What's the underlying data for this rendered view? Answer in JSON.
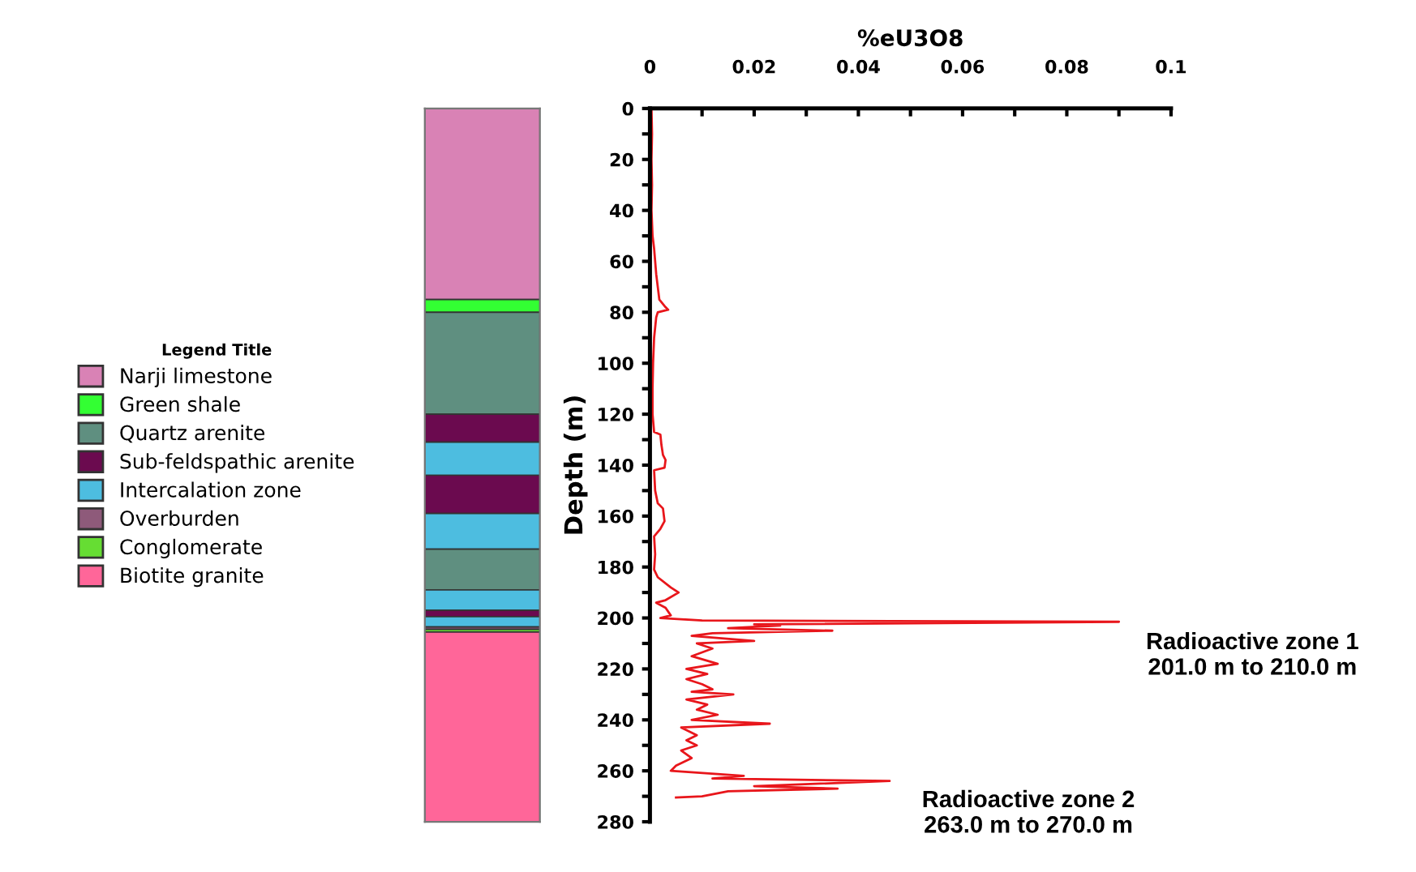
{
  "chart_data": [
    {
      "type": "bar",
      "stacked": true,
      "categories": [
        null
      ],
      "ylim": [
        280,
        0
      ],
      "tick_labels": false,
      "legend": "left",
      "legend_title": "Legend Title",
      "grid": false,
      "series": [
        {
          "name": "Narji limestone",
          "color": "#d982b5",
          "values": [
            75
          ]
        },
        {
          "name": "Green shale",
          "color": "#33ff33",
          "values": [
            5
          ]
        },
        {
          "name": "Quartz arenite",
          "color": "#5f8f80",
          "values": [
            40
          ]
        },
        {
          "name": "Sub-feldspathic arenite",
          "color": "#6b0a4f",
          "values": [
            11
          ]
        },
        {
          "name": "Intercalation zone",
          "color": "#4dbde0",
          "values": [
            13
          ]
        },
        {
          "color": "#6b0a4f",
          "values": [
            15
          ]
        },
        {
          "color": "#4dbde0",
          "values": [
            14
          ]
        },
        {
          "color": "#5f8f80",
          "values": [
            16
          ]
        },
        {
          "color": "#4dbde0",
          "values": [
            8
          ]
        },
        {
          "color": "#6b0a4f",
          "values": [
            2.5
          ]
        },
        {
          "color": "#4dbde0",
          "values": [
            4
          ]
        },
        {
          "name": "Overburden",
          "color": "#8e5a7a",
          "values": [
            1
          ]
        },
        {
          "name": "Conglomerate",
          "color": "#66dd33",
          "values": [
            1
          ]
        },
        {
          "name": "Biotite granite",
          "color": "#ff6699",
          "values": [
            74.5
          ]
        }
      ]
    },
    {
      "type": "line",
      "xlabel": "%eU3O8",
      "ylabel": "Depth (m)",
      "xlim": [
        0,
        0.1
      ],
      "ylim": [
        280,
        0
      ],
      "grid": false,
      "marker": "none",
      "line_style": "solid",
      "xticks": [
        0,
        {
          "value": 0.01,
          "label": null
        },
        0.02,
        {
          "value": 0.03,
          "label": null
        },
        0.04,
        {
          "value": 0.05,
          "label": null
        },
        0.06,
        {
          "value": 0.07,
          "label": null
        },
        0.08,
        {
          "value": 0.09,
          "label": null
        },
        0.1
      ],
      "yticks": [
        0,
        {
          "value": 10,
          "label": null
        },
        20,
        {
          "value": 30,
          "label": null
        },
        40,
        {
          "value": 50,
          "label": null
        },
        60,
        {
          "value": 70,
          "label": null
        },
        80,
        {
          "value": 90,
          "label": null
        },
        100,
        {
          "value": 110,
          "label": null
        },
        120,
        {
          "value": 130,
          "label": null
        },
        140,
        {
          "value": 150,
          "label": null
        },
        160,
        {
          "value": 170,
          "label": null
        },
        180,
        {
          "value": 190,
          "label": null
        },
        200,
        {
          "value": 210,
          "label": null
        },
        220,
        {
          "value": 230,
          "label": null
        },
        240,
        {
          "value": 250,
          "label": null
        },
        260,
        {
          "value": 270,
          "label": null
        },
        280
      ],
      "annotations": [
        {
          "text": "Radioactive zone 1\n201.0 m to 210.0 m",
          "x": 0.09,
          "y": 202
        },
        {
          "text": "Radioactive zone 2\n263.0 m to 270.0 m",
          "x": 0.047,
          "y": 264
        }
      ],
      "series": [
        {
          "color": "#e8161b",
          "x": [
            0.0003,
            0.0004,
            0.0003,
            0.0004,
            0.0003,
            0.0005,
            0.0008,
            0.001,
            0.0012,
            0.0015,
            0.0018,
            0.003,
            0.0035,
            0.0015,
            0.0012,
            0.0008,
            0.0006,
            0.0005,
            0.0005,
            0.0008,
            0.002,
            0.0022,
            0.0025,
            0.003,
            0.0028,
            0.0008,
            0.001,
            0.0015,
            0.0025,
            0.0028,
            0.002,
            0.0008,
            0.001,
            0.0008,
            0.0015,
            0.004,
            0.0055,
            0.003,
            0.0012,
            0.003,
            0.004,
            0.002,
            0.01,
            0.09,
            0.02,
            0.025,
            0.015,
            0.035,
            0.012,
            0.008,
            0.02,
            0.009,
            0.012,
            0.008,
            0.013,
            0.007,
            0.011,
            0.007,
            0.01,
            0.012,
            0.008,
            0.016,
            0.007,
            0.011,
            0.009,
            0.013,
            0.008,
            0.023,
            0.006,
            0.009,
            0.007,
            0.009,
            0.006,
            0.008,
            0.005,
            0.004,
            0.018,
            0.012,
            0.046,
            0.02,
            0.036,
            0.015,
            0.01,
            0.005
          ],
          "values": [
            0,
            10,
            20,
            30,
            40,
            50,
            55,
            60,
            65,
            70,
            75,
            78,
            79,
            80,
            82,
            90,
            100,
            110,
            120,
            127,
            128,
            132,
            136,
            138,
            141,
            142,
            150,
            155,
            157,
            162,
            165,
            168,
            175,
            181,
            184,
            188,
            190,
            193,
            194,
            196,
            199,
            200,
            201,
            201.5,
            202.5,
            203,
            204,
            205,
            206,
            207,
            209,
            210,
            212,
            215,
            218,
            220,
            222,
            224,
            226,
            228,
            229,
            230,
            232,
            234,
            236,
            238,
            240,
            241.5,
            243,
            246,
            248,
            250,
            252,
            255,
            258,
            260,
            262,
            263,
            264,
            266,
            267,
            268,
            270,
            270.5
          ]
        }
      ]
    }
  ]
}
